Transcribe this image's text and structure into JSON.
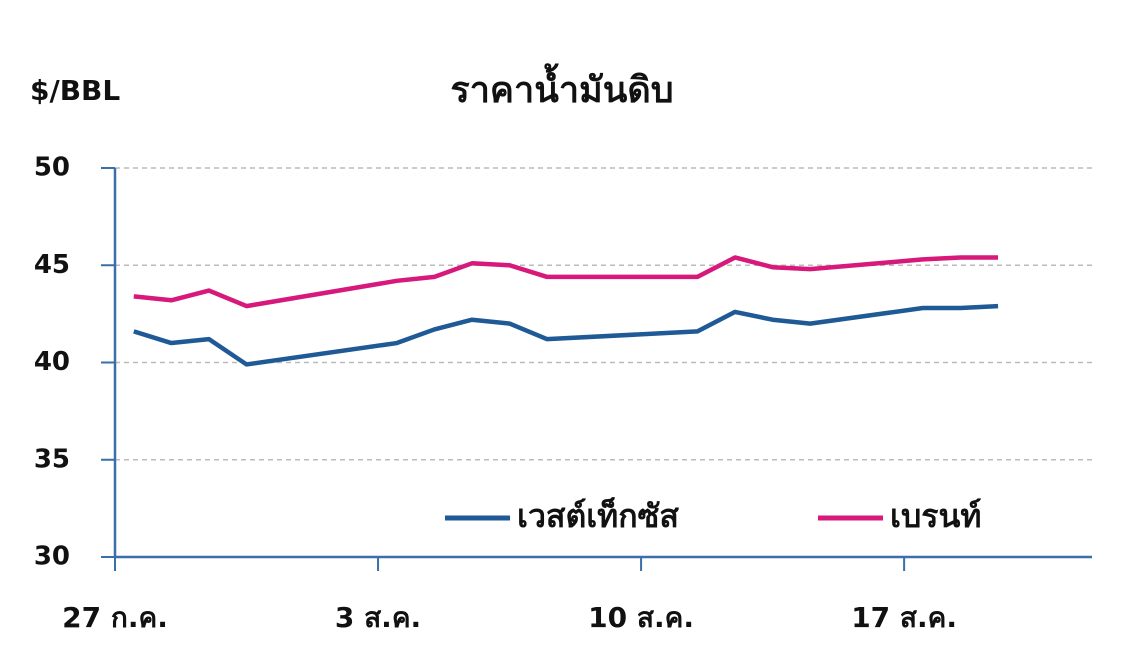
{
  "chart_data": {
    "type": "line",
    "title": "ราคาน้ำมันดิบ",
    "y_label": "$/BBL",
    "x": [
      0.5,
      1.5,
      2.5,
      3.5,
      7.5,
      8.5,
      9.5,
      10.5,
      11.5,
      15.5,
      16.5,
      17.5,
      18.5,
      21.5,
      22.5,
      23.5
    ],
    "series": [
      {
        "name": "เวสต์เท็กซัส",
        "color": "#1f5a96",
        "values": [
          41.6,
          41.0,
          41.2,
          39.9,
          41.0,
          41.7,
          42.2,
          42.0,
          41.2,
          41.6,
          42.6,
          42.2,
          42.0,
          42.8,
          42.8,
          42.9
        ]
      },
      {
        "name": "เบรนท์",
        "color": "#d6197a",
        "values": [
          43.4,
          43.2,
          43.7,
          42.9,
          44.2,
          44.4,
          45.1,
          45.0,
          44.4,
          44.4,
          45.4,
          44.9,
          44.8,
          45.3,
          45.4,
          45.4
        ]
      }
    ],
    "xlim": [
      0,
      26
    ],
    "xticks": [
      {
        "value": 0,
        "label": "27 ก.ค."
      },
      {
        "value": 7,
        "label": "3 ส.ค."
      },
      {
        "value": 14,
        "label": "10 ส.ค."
      },
      {
        "value": 21,
        "label": "17 ส.ค."
      }
    ],
    "ylim": [
      30,
      50
    ],
    "yticks": [
      30,
      35,
      40,
      45,
      50
    ],
    "grid": true,
    "legend": "bottom-right"
  }
}
